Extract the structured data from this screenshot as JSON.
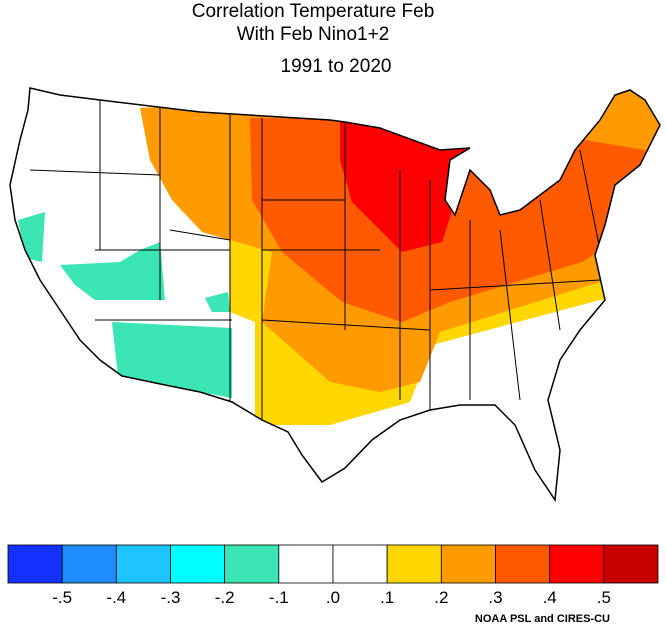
{
  "header": {
    "title_lines": [
      "Correlation Temperature Feb",
      "With Feb Nino1+2"
    ],
    "period": "1991 to 2020"
  },
  "colorbar": {
    "colors": [
      "#1432ff",
      "#1e8cff",
      "#1ec3ff",
      "#00ffff",
      "#3ce6b4",
      "#ffffff",
      "#ffffff",
      "#ffd700",
      "#ff9a00",
      "#ff5a00",
      "#ff0000",
      "#c80000"
    ],
    "labels": [
      "-.5",
      "-.4",
      "-.3",
      "-.2",
      "-.1",
      ".0",
      ".1",
      ".2",
      ".3",
      ".4",
      ".5"
    ]
  },
  "credit": "NOAA PSL and CIRES-CU"
}
